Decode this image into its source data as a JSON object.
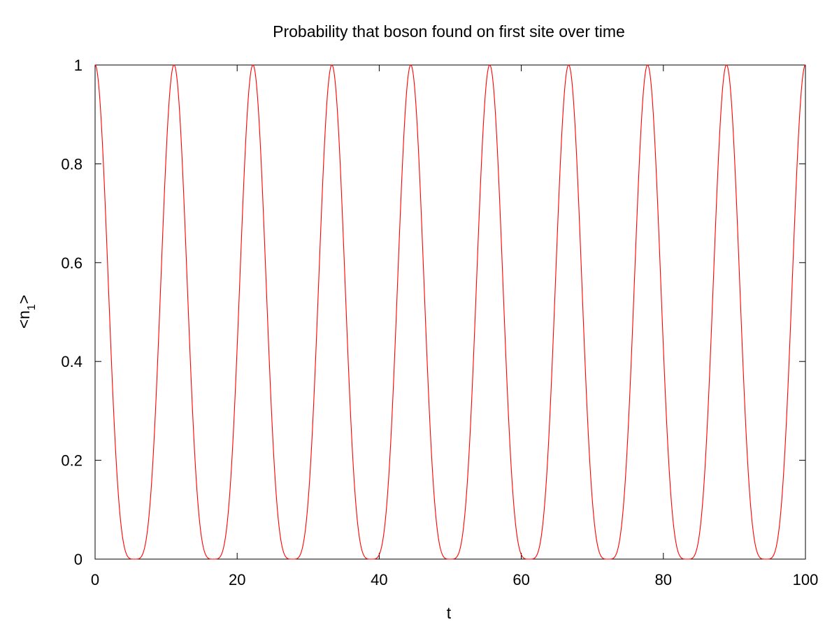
{
  "chart_data": {
    "type": "line",
    "title": "Probability that boson found on first site over time",
    "xlabel": "t",
    "ylabel": {
      "prefix": "<n",
      "subscript": "1",
      "suffix": ">"
    },
    "xlim": [
      0,
      100
    ],
    "ylim": [
      0,
      1
    ],
    "x_ticks": [
      0,
      20,
      40,
      60,
      80,
      100
    ],
    "x_tick_labels": [
      "0",
      "20",
      "40",
      "60",
      "80",
      "100"
    ],
    "y_ticks": [
      0,
      0.2,
      0.4,
      0.6,
      0.8,
      1
    ],
    "y_tick_labels": [
      "0",
      "0.2",
      "0.4",
      "0.6",
      "0.8",
      "1"
    ],
    "grid": false,
    "legend": "none",
    "series": [
      {
        "color": "#ff0000",
        "period": 11.111,
        "x": [
          0,
          5.556,
          11.111,
          16.667,
          22.222,
          27.778,
          33.333,
          38.889,
          44.444,
          50,
          55.556,
          61.111,
          66.667,
          72.222,
          77.778,
          83.333,
          88.889,
          94.444,
          100
        ],
        "y": [
          1,
          0,
          1,
          0,
          1,
          0,
          1,
          0,
          1,
          0,
          1,
          0,
          1,
          0,
          1,
          0,
          1,
          0,
          1
        ]
      }
    ]
  }
}
